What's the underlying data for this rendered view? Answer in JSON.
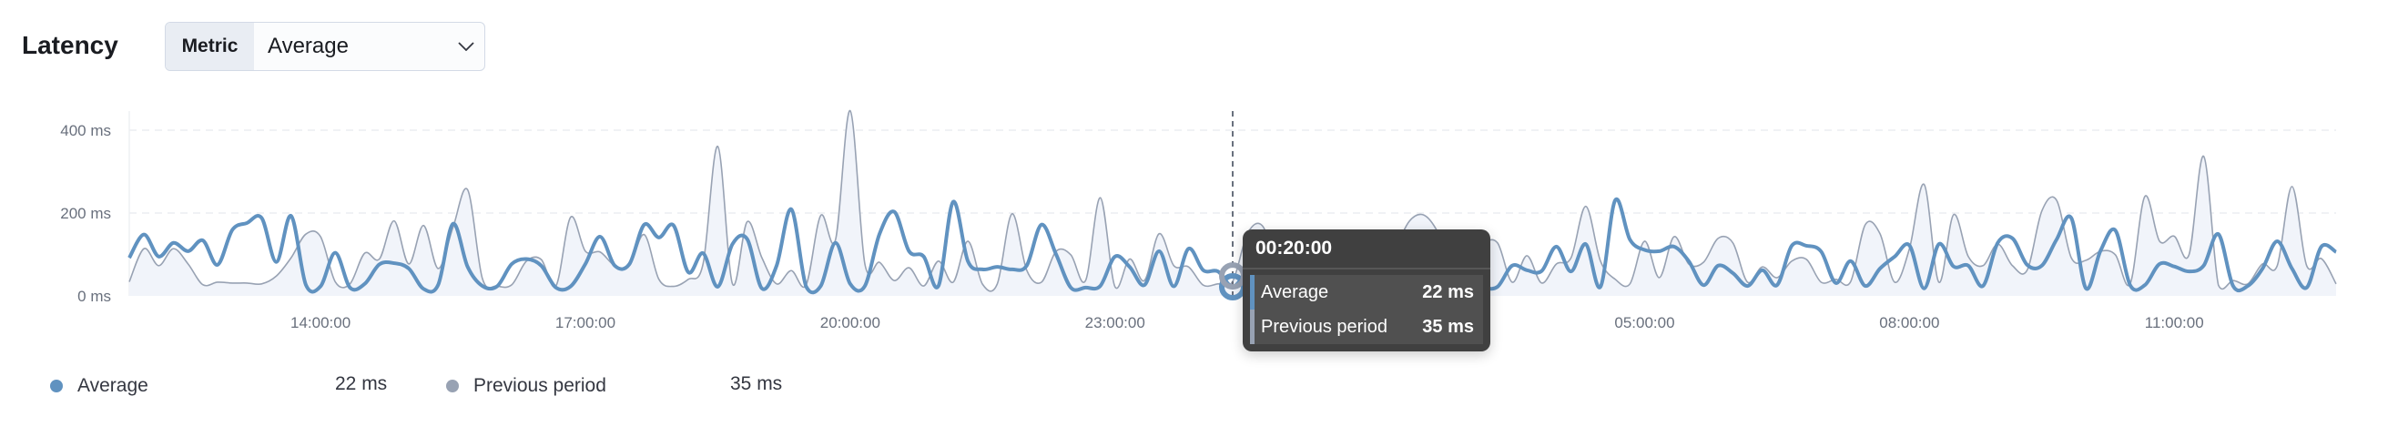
{
  "header": {
    "title": "Latency"
  },
  "metric_select": {
    "prepend_label": "Metric",
    "value": "Average",
    "icon": "chevron-down-icon"
  },
  "colors": {
    "average": "#6092c0",
    "previous": "#98a2b3",
    "previous_fill": "#f1f4fa"
  },
  "tooltip": {
    "time": "00:20:00",
    "rows": [
      {
        "label": "Average",
        "value": "22 ms"
      },
      {
        "label": "Previous period",
        "value": "35 ms"
      }
    ]
  },
  "legend": [
    {
      "label": "Average",
      "value": "22 ms"
    },
    {
      "label": "Previous period",
      "value": "35 ms"
    }
  ],
  "chart_data": {
    "type": "line",
    "title": "",
    "xlabel": "",
    "ylabel": "",
    "ylim": [
      0,
      450
    ],
    "yunit": "ms",
    "y_ticks": [
      "0 ms",
      "200 ms",
      "400 ms"
    ],
    "y_tick_values": [
      0,
      200,
      400
    ],
    "x_ticks": [
      "14:00:00",
      "17:00:00",
      "20:00:00",
      "23:00:00",
      "05:00:00",
      "08:00:00",
      "11:00:00"
    ],
    "grid": "horizontal dashed",
    "hover_time": "00:20",
    "x": [
      "11:50",
      "12:00",
      "12:10",
      "12:20",
      "12:30",
      "12:40",
      "12:50",
      "13:00",
      "13:10",
      "13:20",
      "13:30",
      "13:40",
      "13:50",
      "14:00",
      "14:10",
      "14:20",
      "14:30",
      "14:40",
      "14:50",
      "15:00",
      "15:10",
      "15:20",
      "15:30",
      "15:40",
      "15:50",
      "16:00",
      "16:10",
      "16:20",
      "16:30",
      "16:40",
      "16:50",
      "17:00",
      "17:10",
      "17:20",
      "17:30",
      "17:40",
      "17:50",
      "18:00",
      "18:10",
      "18:20",
      "18:30",
      "18:40",
      "18:50",
      "19:00",
      "19:10",
      "19:20",
      "19:30",
      "19:40",
      "19:50",
      "20:00",
      "20:10",
      "20:20",
      "20:30",
      "20:40",
      "20:50",
      "21:00",
      "21:10",
      "21:20",
      "21:30",
      "21:40",
      "21:50",
      "22:00",
      "22:10",
      "22:20",
      "22:30",
      "22:40",
      "22:50",
      "23:00",
      "23:10",
      "23:20",
      "23:30",
      "23:40",
      "23:50",
      "00:00",
      "00:10",
      "00:20",
      "00:30",
      "00:40",
      "00:50",
      "01:00",
      "01:10",
      "01:20",
      "01:30",
      "01:40",
      "01:50",
      "02:00",
      "02:10",
      "02:20",
      "02:30",
      "02:40",
      "02:50",
      "03:00",
      "03:10",
      "03:20",
      "03:30",
      "03:40",
      "03:50",
      "04:00",
      "04:10",
      "04:20",
      "04:30",
      "04:40",
      "04:50",
      "05:00",
      "05:10",
      "05:20",
      "05:30",
      "05:40",
      "05:50",
      "06:00",
      "06:10",
      "06:20",
      "06:30",
      "06:40",
      "06:50",
      "07:00",
      "07:10",
      "07:20",
      "07:30",
      "07:40",
      "07:50",
      "08:00",
      "08:10",
      "08:20",
      "08:30",
      "08:40",
      "08:50",
      "09:00",
      "09:10",
      "09:20",
      "09:30",
      "09:40",
      "09:50",
      "10:00",
      "10:10",
      "10:20",
      "10:30",
      "10:40",
      "10:50",
      "11:00",
      "11:10",
      "11:20",
      "11:30",
      "11:40",
      "11:50",
      "12:00",
      "12:10",
      "12:20",
      "12:30",
      "12:40",
      "12:50"
    ],
    "series": [
      {
        "name": "Average",
        "values": [
          92,
          148,
          95,
          128,
          108,
          134,
          75,
          159,
          176,
          188,
          82,
          193,
          27,
          23,
          104,
          20,
          29,
          76,
          79,
          66,
          17,
          27,
          174,
          70,
          24,
          23,
          77,
          89,
          73,
          20,
          23,
          77,
          143,
          73,
          77,
          172,
          141,
          170,
          57,
          103,
          22,
          125,
          137,
          18,
          73,
          209,
          23,
          24,
          128,
          29,
          24,
          150,
          203,
          108,
          95,
          24,
          227,
          84,
          64,
          70,
          64,
          73,
          172,
          100,
          20,
          20,
          24,
          95,
          70,
          26,
          108,
          23,
          114,
          62,
          59,
          22,
          60,
          90,
          70,
          40,
          60,
          80,
          50,
          70,
          40,
          60,
          30,
          50,
          80,
          40,
          60,
          30,
          20,
          22,
          73,
          62,
          60,
          119,
          59,
          125,
          22,
          231,
          136,
          111,
          108,
          119,
          84,
          26,
          73,
          55,
          24,
          62,
          26,
          121,
          121,
          107,
          31,
          84,
          24,
          66,
          95,
          122,
          18,
          125,
          71,
          73,
          24,
          128,
          139,
          75,
          73,
          136,
          188,
          18,
          110,
          158,
          26,
          26,
          77,
          71,
          59,
          73,
          149,
          24,
          24,
          66,
          132,
          66,
          20,
          119,
          106
        ]
      },
      {
        "name": "Previous period",
        "values": [
          34,
          114,
          73,
          114,
          77,
          27,
          33,
          31,
          31,
          29,
          48,
          92,
          149,
          143,
          34,
          29,
          103,
          89,
          181,
          77,
          170,
          66,
          165,
          256,
          42,
          24,
          27,
          84,
          88,
          24,
          190,
          108,
          106,
          73,
          73,
          148,
          40,
          23,
          40,
          77,
          361,
          29,
          179,
          92,
          29,
          61,
          26,
          194,
          135,
          447,
          77,
          81,
          37,
          68,
          24,
          84,
          33,
          132,
          28,
          29,
          198,
          62,
          33,
          108,
          99,
          37,
          237,
          22,
          89,
          37,
          150,
          73,
          70,
          26,
          29,
          35,
          150,
          170,
          80,
          40,
          30,
          40,
          60,
          40,
          30,
          50,
          110,
          180,
          195,
          150,
          60,
          40,
          120,
          128,
          33,
          97,
          31,
          77,
          92,
          216,
          84,
          40,
          29,
          132,
          44,
          143,
          77,
          81,
          139,
          128,
          33,
          70,
          44,
          84,
          88,
          33,
          40,
          34,
          172,
          150,
          33,
          114,
          269,
          33,
          196,
          95,
          73,
          125,
          73,
          62,
          205,
          231,
          92,
          86,
          108,
          99,
          29,
          240,
          132,
          144,
          99,
          337,
          26,
          37,
          29,
          77,
          73,
          264,
          73,
          90,
          29
        ]
      }
    ]
  }
}
